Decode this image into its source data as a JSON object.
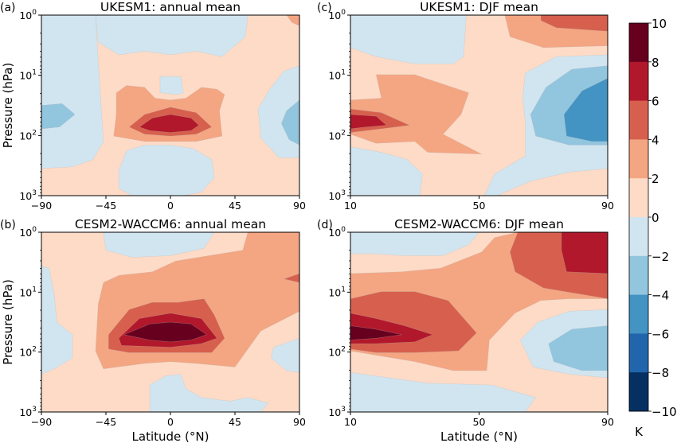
{
  "chart_data": [
    {
      "type": "contour",
      "panel_label": "(a)",
      "title": "UKESM1: annual mean",
      "xlabel": "",
      "ylabel": "Pressure (hPa)",
      "x_ticks": [
        "−90",
        "−45",
        "0",
        "45",
        "90"
      ],
      "xlim": [
        -90,
        90
      ],
      "y_ticks": [
        "10^0",
        "10^1",
        "10^2",
        "10^3"
      ],
      "ylim_hPa": [
        1000,
        1
      ],
      "yscale": "log",
      "features": [
        {
          "level": "0 to 2",
          "region": "background"
        },
        {
          "level": "-2 to 0",
          "region": "upper center 1-5 hPa, -45 to 45"
        },
        {
          "level": "-2 to 0",
          "region": "southern pole column 1-500 hPa"
        },
        {
          "level": "-2 to 0",
          "region": "northern pole column 10-300 hPa"
        },
        {
          "level": "-2 to 0",
          "region": "lower center 200-1000 hPa"
        },
        {
          "level": "-4 to -2",
          "region": "southern pole ~50 hPa"
        },
        {
          "level": "-4 to -2",
          "region": "northern pole ~50-100 hPa"
        },
        {
          "level": "2 to 4",
          "region": "tropics 20-150 hPa"
        },
        {
          "level": "4 to 6",
          "region": "tropics 40-120 hPa"
        },
        {
          "level": "6 to 8",
          "region": "tropics ~60 hPa, max"
        }
      ]
    },
    {
      "type": "contour",
      "panel_label": "(c)",
      "title": "UKESM1: DJF mean",
      "xlabel": "",
      "ylabel": "",
      "x_ticks": [
        "10",
        "50",
        "90"
      ],
      "xlim": [
        10,
        90
      ],
      "y_ticks": [
        "10^0",
        "10^1",
        "10^2",
        "10^3"
      ],
      "ylim_hPa": [
        1000,
        1
      ],
      "yscale": "log",
      "features": [
        {
          "level": "0 to 2",
          "region": "background"
        },
        {
          "level": "-2 to 0",
          "region": "upper low latitudes 1-5 hPa"
        },
        {
          "level": "-2 to 0",
          "region": "lower low latitudes 150-1000 hPa"
        },
        {
          "level": "-2 to 0",
          "region": "high latitudes 5-800 hPa"
        },
        {
          "level": "-4 to -2",
          "region": "polar 8-200 hPa"
        },
        {
          "level": "-6 to -4",
          "region": "polar 15-150 hPa, min"
        },
        {
          "level": "2 to 4",
          "region": "upper polar 1-3 hPa"
        },
        {
          "level": "4 to 6",
          "region": "upper polar 1-1.5 hPa"
        },
        {
          "level": "2 to 4",
          "region": "low latitudes 10-200 hPa"
        },
        {
          "level": "4 to 6",
          "region": "low latitudes 30-100 hPa"
        },
        {
          "level": "6 to 8",
          "region": "low latitudes ~60 hPa"
        }
      ]
    },
    {
      "type": "contour",
      "panel_label": "(b)",
      "title": "CESM2-WACCM6: annual mean",
      "xlabel": "Latitude (°N)",
      "ylabel": "Pressure (hPa)",
      "x_ticks": [
        "−90",
        "−45",
        "0",
        "45",
        "90"
      ],
      "xlim": [
        -90,
        90
      ],
      "y_ticks": [
        "10^0",
        "10^1",
        "10^2",
        "10^3"
      ],
      "ylim_hPa": [
        1000,
        1
      ],
      "yscale": "log",
      "features": [
        {
          "level": "0 to 2",
          "region": "background"
        },
        {
          "level": "-2 to 0",
          "region": "upper center 1-3 hPa"
        },
        {
          "level": "-2 to 0",
          "region": "southern pole 4-250 hPa"
        },
        {
          "level": "-2 to 0",
          "region": "northern pole 60-200 hPa"
        },
        {
          "level": "-2 to 0",
          "region": "lower center 250-1000 hPa"
        },
        {
          "level": "2 to 4",
          "region": "tropics & NH upper 1-150 hPa"
        },
        {
          "level": "4 to 6",
          "region": "tropics 10-100 hPa; NH pole ~5 hPa"
        },
        {
          "level": "6 to 8",
          "region": "tropics 25-80 hPa"
        },
        {
          "level": "8 to 10",
          "region": "tropics ~50 hPa, max"
        }
      ]
    },
    {
      "type": "contour",
      "panel_label": "(d)",
      "title": "CESM2-WACCM6: DJF mean",
      "xlabel": "Latitude (°N)",
      "ylabel": "",
      "x_ticks": [
        "10",
        "50",
        "90"
      ],
      "xlim": [
        10,
        90
      ],
      "y_ticks": [
        "10^0",
        "10^1",
        "10^2",
        "10^3"
      ],
      "ylim_hPa": [
        1000,
        1
      ],
      "yscale": "log",
      "features": [
        {
          "level": "0 to 2",
          "region": "background"
        },
        {
          "level": "-2 to 0",
          "region": "upper low latitudes 1-2 hPa"
        },
        {
          "level": "-2 to 0",
          "region": "lower 200-1000 hPa"
        },
        {
          "level": "-2 to 0",
          "region": "polar 20-300 hPa"
        },
        {
          "level": "-4 to -2",
          "region": "polar 40-200 hPa"
        },
        {
          "level": "2 to 4",
          "region": "broad 4-200 hPa"
        },
        {
          "level": "4 to 6",
          "region": "low latitudes 10-100 hPa; polar 1-10 hPa"
        },
        {
          "level": "6 to 8",
          "region": "low latitudes 30-80 hPa; polar 1-5 hPa"
        },
        {
          "level": "8 to 10",
          "region": "low latitudes ~50 hPa, max"
        }
      ]
    }
  ],
  "colorbar": {
    "label": "K",
    "ticks": [
      "10",
      "8",
      "6",
      "4",
      "2",
      "0",
      "−2",
      "−4",
      "−6",
      "−8",
      "−10"
    ],
    "levels": [
      10,
      8,
      6,
      4,
      2,
      0,
      -2,
      -4,
      -6,
      -8,
      -10
    ],
    "colors": [
      "#67001f",
      "#b2182b",
      "#d6604d",
      "#f4a582",
      "#fddbc7",
      "#d1e5f0",
      "#92c5de",
      "#4393c3",
      "#2166ac",
      "#053061"
    ]
  },
  "palette": {
    "p8_10": "#67001f",
    "p6_8": "#b2182b",
    "p4_6": "#d6604d",
    "p2_4": "#f4a582",
    "p0_2": "#fddbc7",
    "n0_2": "#d1e5f0",
    "n2_4": "#92c5de",
    "n4_6": "#4393c3",
    "n6_8": "#2166ac",
    "n8_10": "#053061"
  }
}
